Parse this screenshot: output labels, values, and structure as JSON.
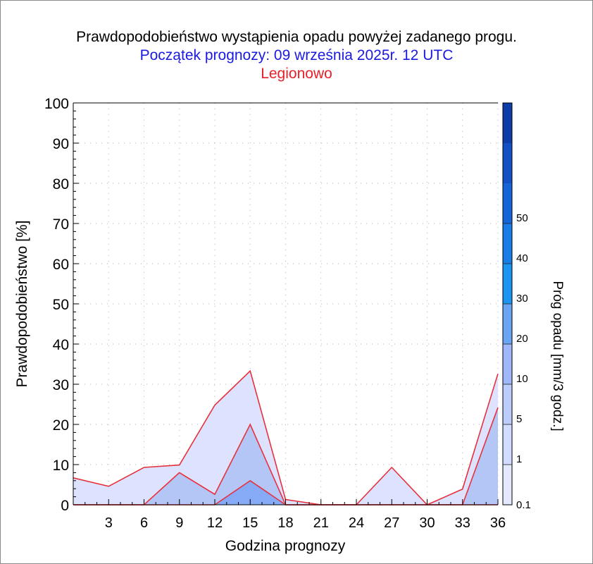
{
  "chart_data": {
    "type": "area",
    "title": "Prawdopodobieństwo wystąpienia opadu powyżej zadanego progu.",
    "subtitle": "Początek prognozy: 09 września 2025r. 12 UTC",
    "location": "Legionowo",
    "xlabel": "Godzina prognozy",
    "ylabel": "Prawdopodobieństwo [%]",
    "colorbar_label": "Próg opadu [mm/3 godz.]",
    "xlim": [
      0,
      36
    ],
    "ylim": [
      0,
      100
    ],
    "xticks": [
      "3",
      "6",
      "9",
      "12",
      "15",
      "18",
      "21",
      "24",
      "27",
      "30",
      "33",
      "36"
    ],
    "yticks": [
      "0",
      "10",
      "20",
      "30",
      "40",
      "50",
      "60",
      "70",
      "80",
      "90",
      "100"
    ],
    "grid": true,
    "x": [
      0,
      3,
      6,
      9,
      12,
      15,
      18,
      21,
      24,
      27,
      30,
      33,
      36
    ],
    "series": [
      {
        "threshold": "0.1",
        "color": "#dde3ff",
        "values": [
          6.7,
          4.6,
          9.3,
          9.9,
          24.8,
          33.3,
          1.3,
          0,
          0,
          9.3,
          0,
          3.9,
          32.6
        ]
      },
      {
        "threshold": "1",
        "color": "#b4c6f6",
        "values": [
          0,
          0,
          0,
          8.0,
          2.6,
          20.0,
          0,
          0,
          0,
          0,
          0,
          0,
          24.2
        ]
      },
      {
        "threshold": "5",
        "color": "#86aaf5",
        "values": [
          0,
          0,
          0,
          0,
          0,
          6.0,
          0,
          0,
          0,
          0,
          0,
          0,
          0
        ]
      }
    ],
    "colorbar": {
      "tick_labels": [
        "0.1",
        "1",
        "5",
        "10",
        "20",
        "30",
        "40",
        "50"
      ],
      "colors": [
        "#e4e9ff",
        "#d2dcff",
        "#bccdfc",
        "#9fb8fa",
        "#6aa5f4",
        "#1c95f0",
        "#1a7ce5",
        "#1565d8",
        "#1250c4",
        "#0d3ea8"
      ]
    }
  }
}
